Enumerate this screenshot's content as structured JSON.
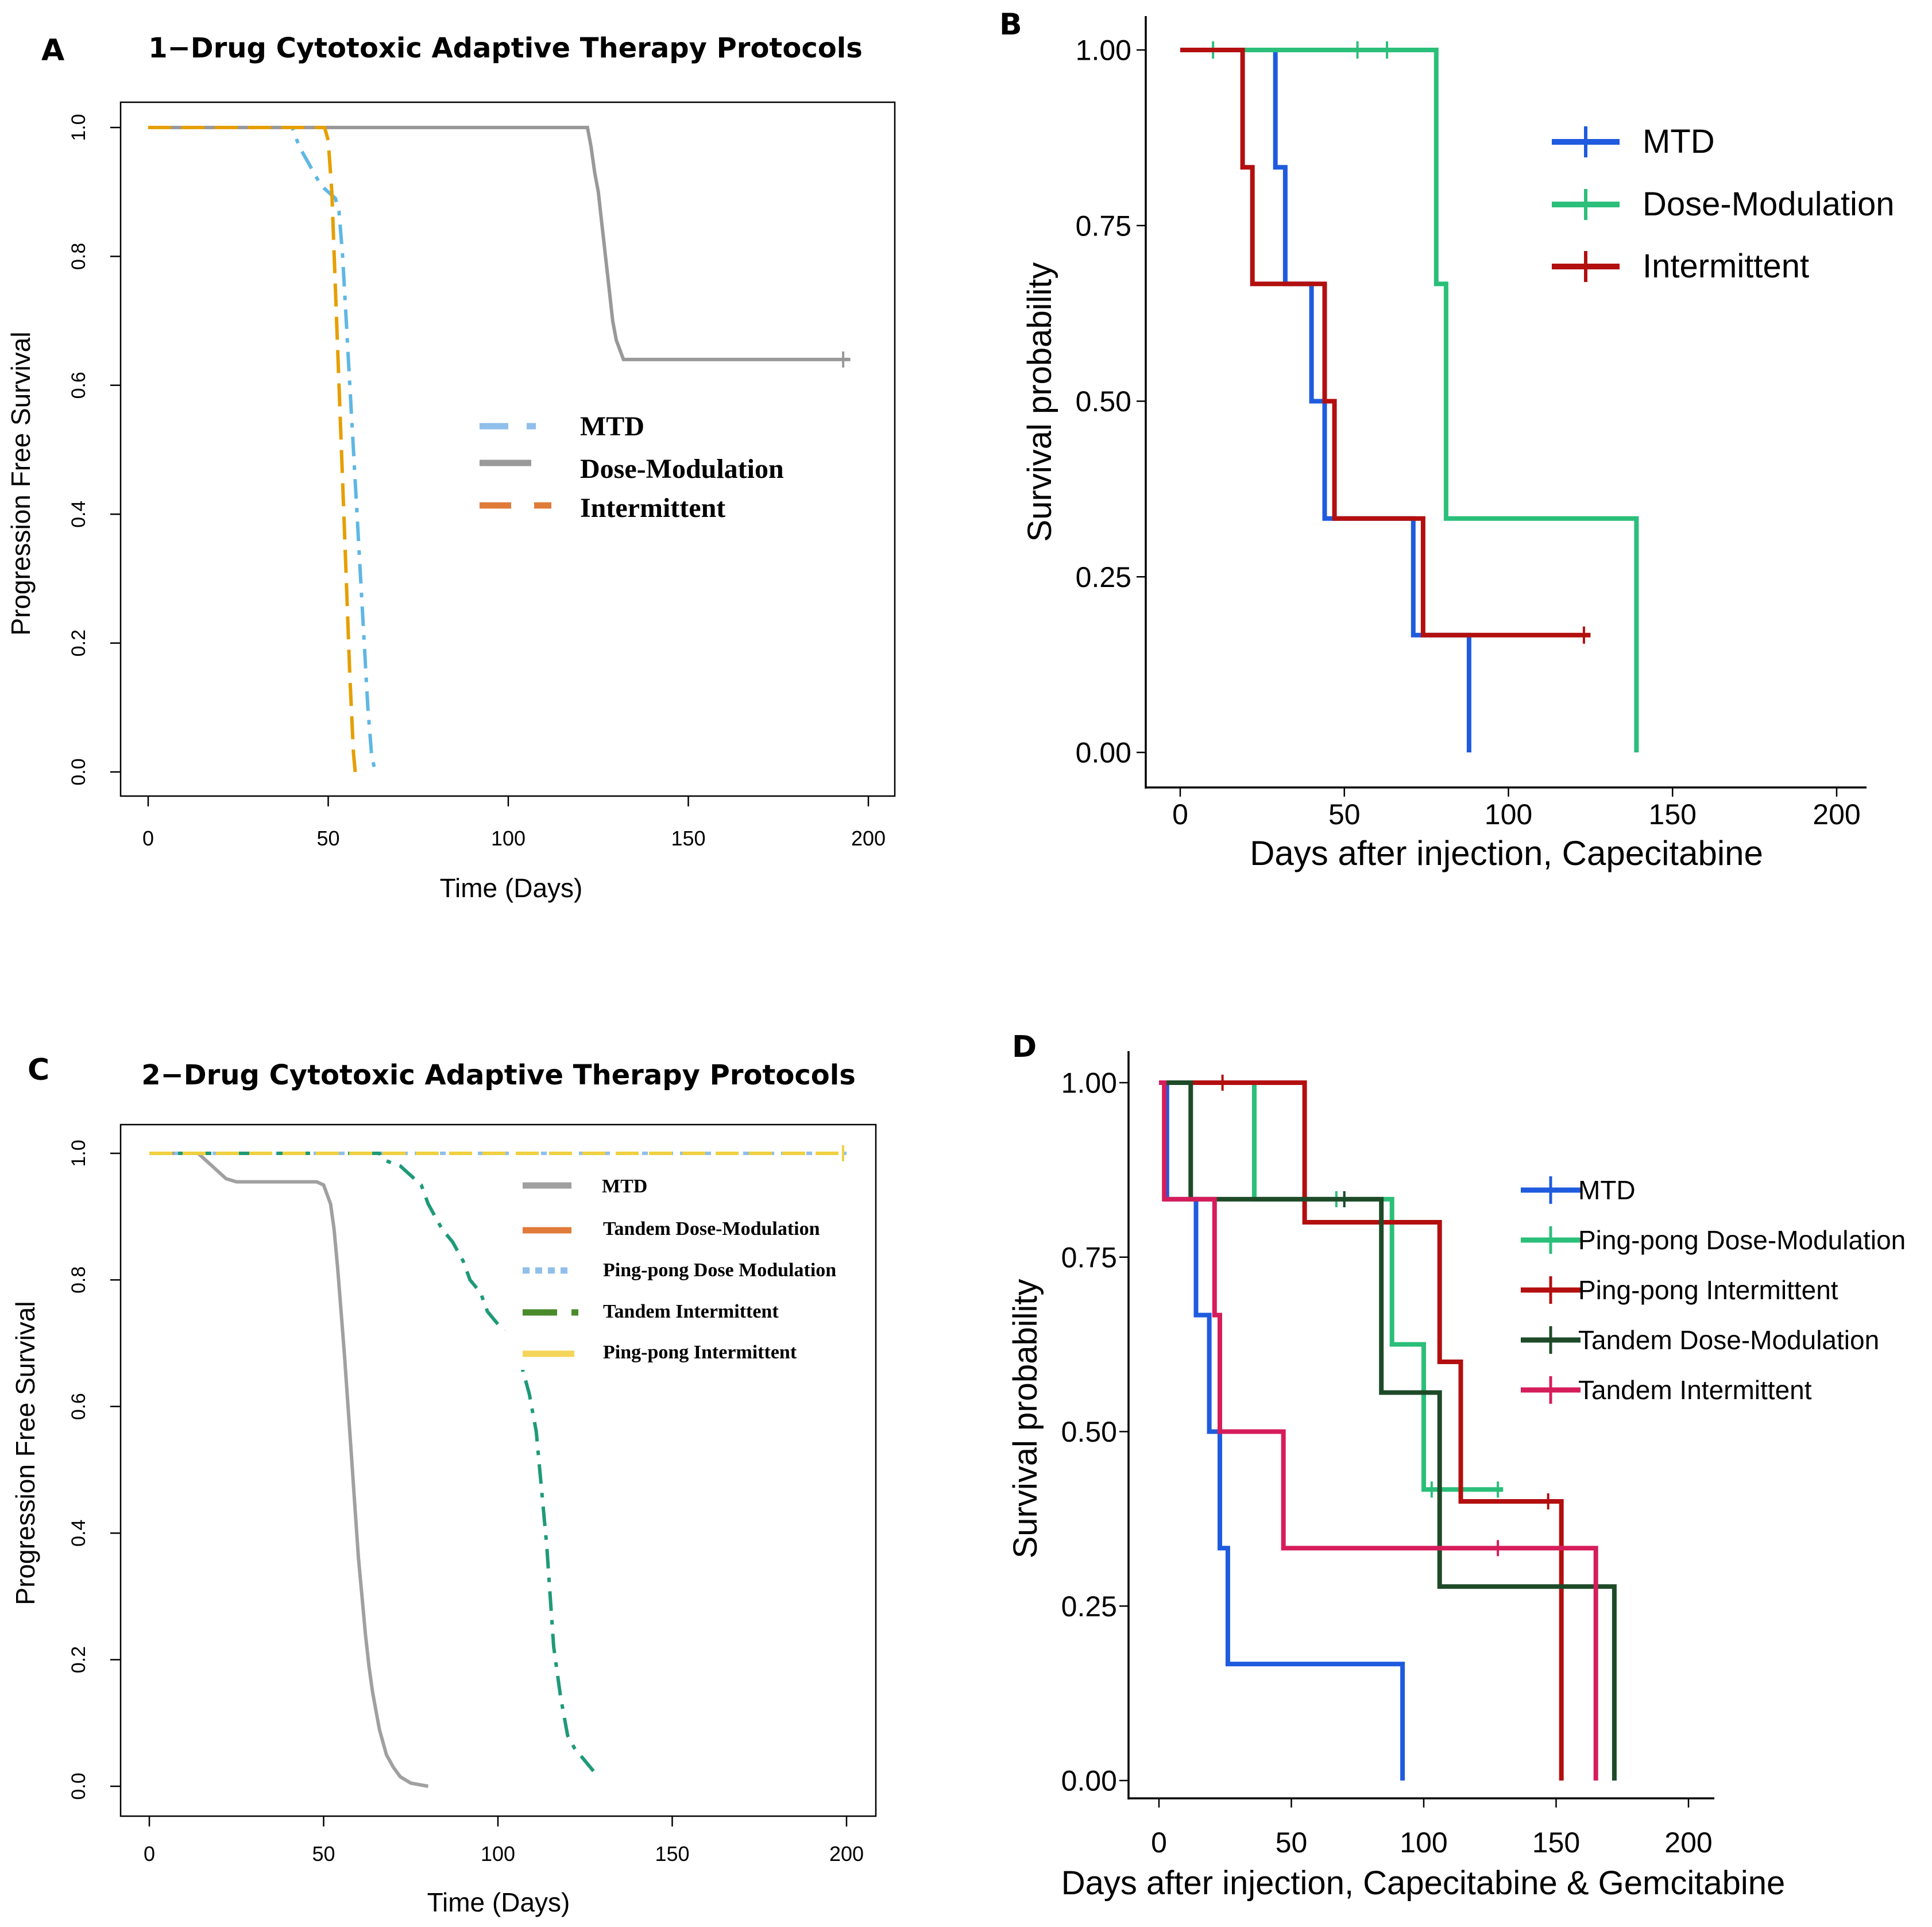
{
  "chart_data": [
    {
      "panel": "A",
      "type": "line",
      "chart_kind": "kaplan-meier",
      "title": "1−Drug Cytotoxic Adaptive Therapy Protocols",
      "xlabel": "Time (Days)",
      "ylabel": "Progression Free Survival",
      "xlim": [
        0,
        200
      ],
      "ylim": [
        0,
        1
      ],
      "xticks": [
        "0",
        "50",
        "100",
        "150",
        "200"
      ],
      "yticks": [
        "0.0",
        "0.2",
        "0.4",
        "0.6",
        "0.8",
        "1.0"
      ],
      "legend_position": "center",
      "series": [
        {
          "name": "MTD",
          "color": "#5fb7e5",
          "style": "dotdash",
          "points": [
            [
              0,
              1
            ],
            [
              40,
              1
            ],
            [
              42,
              0.97
            ],
            [
              44,
              0.95
            ],
            [
              46,
              0.93
            ],
            [
              48,
              0.91
            ],
            [
              50,
              0.9
            ],
            [
              52,
              0.89
            ],
            [
              53,
              0.87
            ],
            [
              54,
              0.8
            ],
            [
              55,
              0.7
            ],
            [
              56,
              0.6
            ],
            [
              57,
              0.5
            ],
            [
              58,
              0.4
            ],
            [
              59,
              0.3
            ],
            [
              60,
              0.2
            ],
            [
              61,
              0.1
            ],
            [
              62,
              0.03
            ],
            [
              63,
              0.0
            ]
          ]
        },
        {
          "name": "Dose-Modulation",
          "color": "#999999",
          "style": "solid",
          "censor": [
            [
              193,
              0.64
            ]
          ],
          "points": [
            [
              0,
              1
            ],
            [
              122,
              1
            ],
            [
              123,
              0.97
            ],
            [
              124,
              0.93
            ],
            [
              125,
              0.9
            ],
            [
              126,
              0.85
            ],
            [
              127,
              0.8
            ],
            [
              128,
              0.75
            ],
            [
              129,
              0.7
            ],
            [
              130,
              0.67
            ],
            [
              132,
              0.64
            ],
            [
              195,
              0.64
            ]
          ]
        },
        {
          "name": "Intermittent",
          "color": "#e69f00",
          "style": "dashed",
          "points": [
            [
              0,
              1
            ],
            [
              49,
              1
            ],
            [
              50,
              0.98
            ],
            [
              51,
              0.9
            ],
            [
              52,
              0.75
            ],
            [
              53,
              0.6
            ],
            [
              54,
              0.45
            ],
            [
              55,
              0.3
            ],
            [
              56,
              0.15
            ],
            [
              57,
              0.03
            ],
            [
              57.5,
              0.0
            ]
          ]
        }
      ]
    },
    {
      "panel": "B",
      "type": "line",
      "chart_kind": "kaplan-meier",
      "title": "",
      "xlabel": "Days after injection, Capecitabine",
      "ylabel": "Survival probability",
      "xlim": [
        0,
        200
      ],
      "ylim": [
        0,
        1
      ],
      "xticks": [
        "0",
        "50",
        "100",
        "150",
        "200"
      ],
      "yticks": [
        "0.00",
        "0.25",
        "0.50",
        "0.75",
        "1.00"
      ],
      "legend_position": "top-right",
      "series": [
        {
          "name": "MTD",
          "color": "#1f5bde",
          "censor": [],
          "points": [
            [
              0,
              1
            ],
            [
              29,
              1
            ],
            [
              29,
              0.833
            ],
            [
              32,
              0.833
            ],
            [
              32,
              0.667
            ],
            [
              40,
              0.667
            ],
            [
              40,
              0.5
            ],
            [
              44,
              0.5
            ],
            [
              44,
              0.333
            ],
            [
              71,
              0.333
            ],
            [
              71,
              0.167
            ],
            [
              88,
              0.167
            ],
            [
              88,
              0
            ]
          ]
        },
        {
          "name": "Dose-Modulation",
          "color": "#2bbf79",
          "censor": [
            [
              10,
              1
            ],
            [
              54,
              1
            ],
            [
              63,
              1
            ]
          ],
          "points": [
            [
              0,
              1
            ],
            [
              78,
              1
            ],
            [
              78,
              0.667
            ],
            [
              81,
              0.667
            ],
            [
              81,
              0.333
            ],
            [
              139,
              0.333
            ],
            [
              139,
              0
            ]
          ]
        },
        {
          "name": "Intermittent",
          "color": "#b30f0f",
          "censor": [
            [
              123,
              0.167
            ]
          ],
          "points": [
            [
              0,
              1
            ],
            [
              19,
              1
            ],
            [
              19,
              0.833
            ],
            [
              22,
              0.833
            ],
            [
              22,
              0.667
            ],
            [
              44,
              0.667
            ],
            [
              44,
              0.5
            ],
            [
              47,
              0.5
            ],
            [
              47,
              0.333
            ],
            [
              74,
              0.333
            ],
            [
              74,
              0.167
            ],
            [
              125,
              0.167
            ]
          ]
        }
      ]
    },
    {
      "panel": "C",
      "type": "line",
      "chart_kind": "kaplan-meier",
      "title": "2−Drug Cytotoxic Adaptive Therapy Protocols",
      "xlabel": "Time (Days)",
      "ylabel": "Progression Free Survival",
      "xlim": [
        0,
        200
      ],
      "ylim": [
        0,
        1
      ],
      "xticks": [
        "0",
        "50",
        "100",
        "150",
        "200"
      ],
      "yticks": [
        "0.0",
        "0.2",
        "0.4",
        "0.6",
        "0.8",
        "1.0"
      ],
      "legend_position": "top-right",
      "series": [
        {
          "name": "MTD",
          "color": "#a0a0a0",
          "style": "solid",
          "points": [
            [
              0,
              1
            ],
            [
              14,
              1
            ],
            [
              16,
              0.99
            ],
            [
              18,
              0.98
            ],
            [
              20,
              0.97
            ],
            [
              22,
              0.96
            ],
            [
              25,
              0.955
            ],
            [
              48,
              0.955
            ],
            [
              50,
              0.95
            ],
            [
              52,
              0.92
            ],
            [
              53,
              0.88
            ],
            [
              54,
              0.82
            ],
            [
              55,
              0.75
            ],
            [
              56,
              0.68
            ],
            [
              57,
              0.6
            ],
            [
              58,
              0.52
            ],
            [
              59,
              0.44
            ],
            [
              60,
              0.36
            ],
            [
              61,
              0.3
            ],
            [
              62,
              0.24
            ],
            [
              63,
              0.19
            ],
            [
              64,
              0.15
            ],
            [
              65,
              0.12
            ],
            [
              66,
              0.09
            ],
            [
              67,
              0.07
            ],
            [
              68,
              0.05
            ],
            [
              70,
              0.03
            ],
            [
              72,
              0.015
            ],
            [
              75,
              0.005
            ],
            [
              80,
              0.0
            ]
          ]
        },
        {
          "name": "Tandem Dose-Modulation",
          "color": "#e07b39",
          "style": "dashed",
          "points": [
            [
              0,
              1
            ],
            [
              200,
              1
            ]
          ]
        },
        {
          "name": "Ping-pong Dose Modulation",
          "color": "#8fbfea",
          "style": "dotted",
          "points": [
            [
              0,
              1
            ],
            [
              200,
              1
            ]
          ]
        },
        {
          "name": "Tandem Intermittent",
          "color": "#1e9a78",
          "style": "dotdash",
          "points": [
            [
              0,
              1
            ],
            [
              66,
              1
            ],
            [
              67,
              0.99
            ],
            [
              72,
              0.98
            ],
            [
              74,
              0.97
            ],
            [
              78,
              0.95
            ],
            [
              80,
              0.92
            ],
            [
              82,
              0.9
            ],
            [
              84,
              0.88
            ],
            [
              87,
              0.86
            ],
            [
              90,
              0.83
            ],
            [
              92,
              0.8
            ],
            [
              95,
              0.78
            ],
            [
              97,
              0.75
            ],
            [
              100,
              0.73
            ],
            [
              103,
              0.72
            ],
            [
              105,
              0.7
            ],
            [
              107,
              0.66
            ],
            [
              109,
              0.62
            ],
            [
              111,
              0.56
            ],
            [
              112,
              0.5
            ],
            [
              113,
              0.44
            ],
            [
              114,
              0.38
            ],
            [
              115,
              0.3
            ],
            [
              116,
              0.22
            ],
            [
              118,
              0.14
            ],
            [
              120,
              0.08
            ],
            [
              122,
              0.06
            ],
            [
              125,
              0.04
            ],
            [
              128,
              0.02
            ]
          ]
        },
        {
          "name": "Ping-pong Intermittent",
          "color": "#f0d040",
          "style": "dashed",
          "censor": [
            [
              199,
              1
            ]
          ],
          "points": [
            [
              0,
              1
            ],
            [
              200,
              1
            ]
          ]
        }
      ]
    },
    {
      "panel": "D",
      "type": "line",
      "chart_kind": "kaplan-meier",
      "title": "",
      "xlabel": "Days after injection, Capecitabine & Gemcitabine",
      "ylabel": "Survival probability",
      "xlim": [
        0,
        200
      ],
      "ylim": [
        0,
        1
      ],
      "xticks": [
        "0",
        "50",
        "100",
        "150",
        "200"
      ],
      "yticks": [
        "0.00",
        "0.25",
        "0.50",
        "0.75",
        "1.00"
      ],
      "legend_position": "right",
      "series": [
        {
          "name": "MTD",
          "color": "#1f5bde",
          "censor": [],
          "points": [
            [
              0,
              1
            ],
            [
              3,
              1
            ],
            [
              3,
              0.833
            ],
            [
              14,
              0.833
            ],
            [
              14,
              0.667
            ],
            [
              19,
              0.667
            ],
            [
              19,
              0.5
            ],
            [
              23,
              0.5
            ],
            [
              23,
              0.333
            ],
            [
              26,
              0.333
            ],
            [
              26,
              0.167
            ],
            [
              92,
              0.167
            ],
            [
              92,
              0
            ]
          ]
        },
        {
          "name": "Ping-pong Dose-Modulation",
          "color": "#2bbf79",
          "censor": [
            [
              67,
              0.833
            ],
            [
              70,
              0.833
            ],
            [
              103,
              0.417
            ],
            [
              128,
              0.417
            ]
          ],
          "points": [
            [
              0,
              1
            ],
            [
              36,
              1
            ],
            [
              36,
              0.833
            ],
            [
              88,
              0.833
            ],
            [
              88,
              0.625
            ],
            [
              100,
              0.625
            ],
            [
              100,
              0.417
            ],
            [
              130,
              0.417
            ]
          ]
        },
        {
          "name": "Ping-pong Intermittent",
          "color": "#b30f0f",
          "censor": [
            [
              24,
              1
            ],
            [
              147,
              0.4
            ]
          ],
          "points": [
            [
              0,
              1
            ],
            [
              55,
              1
            ],
            [
              55,
              0.8
            ],
            [
              106,
              0.8
            ],
            [
              106,
              0.6
            ],
            [
              114,
              0.6
            ],
            [
              114,
              0.4
            ],
            [
              152,
              0.4
            ],
            [
              152,
              0
            ]
          ]
        },
        {
          "name": "Tandem Dose-Modulation",
          "color": "#1e4a28",
          "censor": [
            [
              70,
              0.833
            ]
          ],
          "points": [
            [
              0,
              1
            ],
            [
              12,
              1
            ],
            [
              12,
              0.833
            ],
            [
              84,
              0.833
            ],
            [
              84,
              0.556
            ],
            [
              106,
              0.556
            ],
            [
              106,
              0.278
            ],
            [
              172,
              0.278
            ],
            [
              172,
              0
            ]
          ]
        },
        {
          "name": "Tandem Intermittent",
          "color": "#d61d5b",
          "censor": [
            [
              128,
              0.333
            ]
          ],
          "points": [
            [
              0,
              1
            ],
            [
              2,
              1
            ],
            [
              2,
              0.833
            ],
            [
              21,
              0.833
            ],
            [
              21,
              0.667
            ],
            [
              23,
              0.667
            ],
            [
              23,
              0.5
            ],
            [
              47,
              0.5
            ],
            [
              47,
              0.333
            ],
            [
              165,
              0.333
            ],
            [
              165,
              0
            ]
          ]
        }
      ]
    }
  ],
  "panels": {
    "A": {
      "letter": "A",
      "title": "1−Drug Cytotoxic Adaptive Therapy Protocols",
      "xlabel": "Time (Days)",
      "ylabel": "Progression Free Survival"
    },
    "B": {
      "letter": "B",
      "xlabel": "Days after injection, Capecitabine",
      "ylabel": "Survival probability"
    },
    "C": {
      "letter": "C",
      "title": "2−Drug Cytotoxic Adaptive Therapy Protocols",
      "xlabel": "Time (Days)",
      "ylabel": "Progression Free Survival"
    },
    "D": {
      "letter": "D",
      "xlabel": "Days after injection, Capecitabine & Gemcitabine",
      "ylabel": "Survival probability"
    }
  }
}
